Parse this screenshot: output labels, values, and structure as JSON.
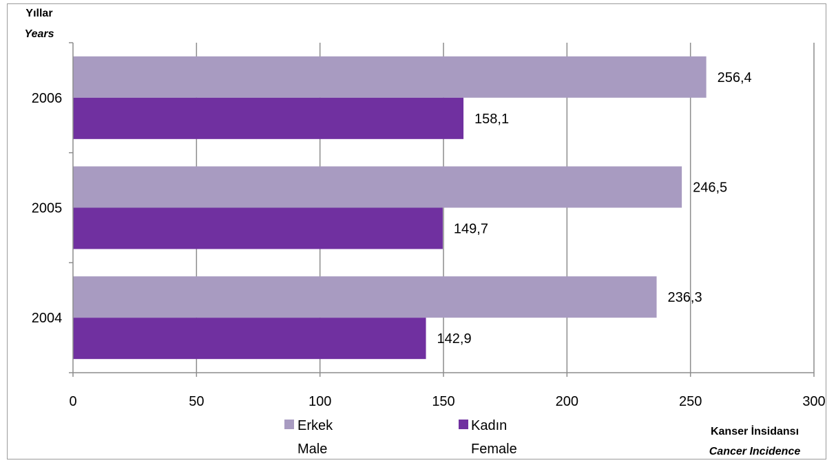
{
  "chart_data": {
    "type": "bar",
    "orientation": "horizontal",
    "categories": [
      "2004",
      "2005",
      "2006"
    ],
    "series": [
      {
        "name": "Erkek",
        "name_en": "Male",
        "values": [
          236.3,
          246.5,
          256.4
        ],
        "labels": [
          "236,3",
          "246,5",
          "256,4"
        ],
        "color": "#a89bc1"
      },
      {
        "name": "Kadın",
        "name_en": "Female",
        "values": [
          142.9,
          149.7,
          158.1
        ],
        "labels": [
          "142,9",
          "149,7",
          "158,1"
        ],
        "color": "#7030a0"
      }
    ],
    "xlim": [
      0,
      300
    ],
    "xticks": [
      "0",
      "50",
      "100",
      "150",
      "200",
      "250",
      "300"
    ],
    "ylabel": "Yıllar",
    "ylabel_en": "Years",
    "xlabel": "Kanser İnsidansı",
    "xlabel_en": "Cancer Incidence",
    "grid": true,
    "legend": "bottom"
  }
}
